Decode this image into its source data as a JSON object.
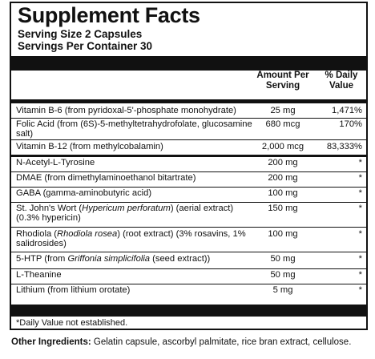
{
  "title": "Supplement Facts",
  "serving_size": "Serving Size 2 Capsules",
  "servings_per_container": "Servings Per Container 30",
  "col_amount": "Amount Per Serving",
  "col_dv": "% Daily Value",
  "rows": [
    {
      "name": "Vitamin B-6 (from pyridoxal-5'-phosphate monohydrate)",
      "amount": "25 mg",
      "dv": "1,471%"
    },
    {
      "name": "Folic Acid (from (6S)-5-methyltetrahydrofolate, glucosamine salt)",
      "amount": "680 mcg",
      "dv": "170%"
    },
    {
      "name": "Vitamin B-12 (from methylcobalamin)",
      "amount": "2,000 mcg",
      "dv": "83,333%"
    },
    {
      "name": "N-Acetyl-L-Tyrosine",
      "amount": "200 mg",
      "dv": "*"
    },
    {
      "name": "DMAE (from dimethylaminoethanol bitartrate)",
      "amount": "200 mg",
      "dv": "*"
    },
    {
      "name": "GABA (gamma-aminobutyric acid)",
      "amount": "100 mg",
      "dv": "*"
    },
    {
      "name_pre": "St. John's Wort (",
      "name_italic": "Hypericum perforatum",
      "name_post": ") (aerial extract) (0.3% hypericin)",
      "amount": "150 mg",
      "dv": "*"
    },
    {
      "name_pre": "Rhodiola (",
      "name_italic": "Rhodiola rosea",
      "name_post": ") (root extract) (3% rosavins, 1% salidrosides)",
      "amount": "100 mg",
      "dv": "*"
    },
    {
      "name_pre": "5-HTP (from ",
      "name_italic": "Griffonia simplicifolia",
      "name_post": " (seed extract))",
      "amount": "50 mg",
      "dv": "*"
    },
    {
      "name": "L-Theanine",
      "amount": "50 mg",
      "dv": "*"
    },
    {
      "name": "Lithium (from lithium orotate)",
      "amount": "5 mg",
      "dv": "*"
    }
  ],
  "footnote": "*Daily Value not established.",
  "other_label": "Other Ingredients:",
  "other_text": " Gelatin capsule, ascorbyl palmitate, rice bran extract, cellulose."
}
